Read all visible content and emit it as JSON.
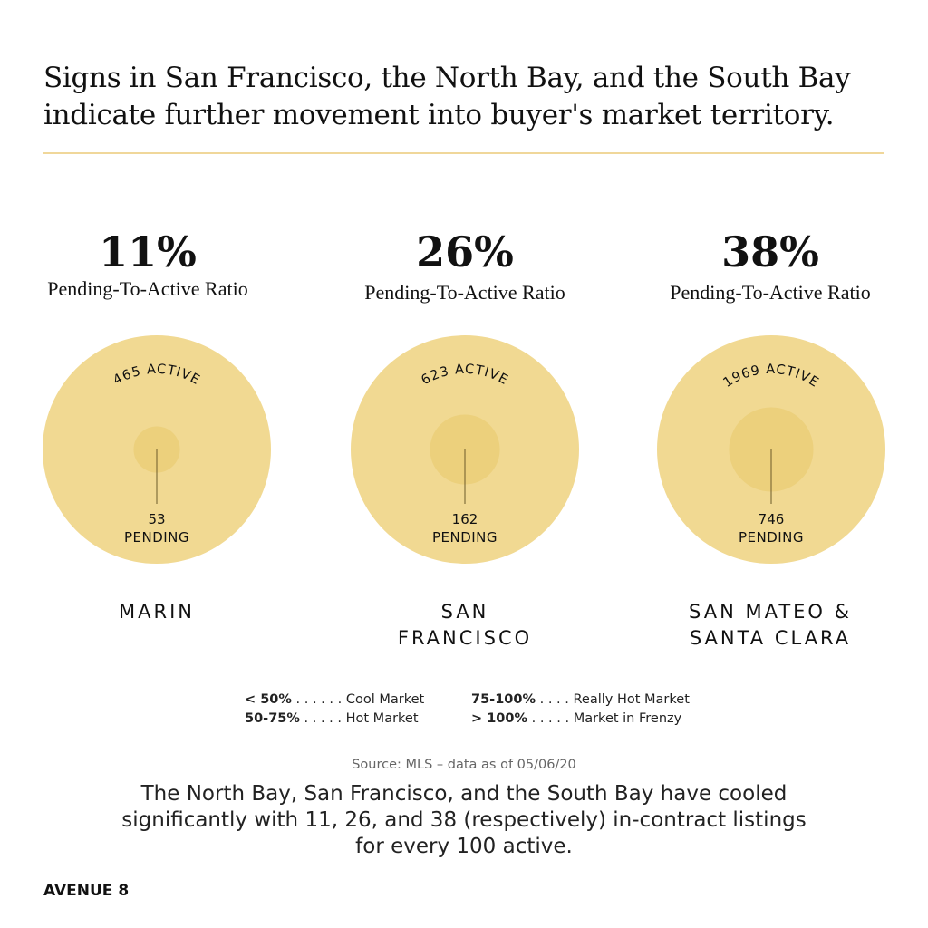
{
  "header": {
    "title_line1": "Signs in San Francisco, the North Bay, and the South Bay",
    "title_line2": "indicate further movement into buyer's market territory."
  },
  "colors": {
    "outer_circle": "#f1d992",
    "inner_circle": "#ecd07c",
    "rule": "#f0d79a",
    "pointer": "#6b5a2a"
  },
  "chart_data": {
    "type": "bubble",
    "categories": [
      "MARIN",
      "SAN FRANCISCO",
      "SAN MATEO & SANTA CLARA"
    ],
    "series": [
      {
        "name": "ACTIVE",
        "values": [
          465,
          623,
          1969
        ]
      },
      {
        "name": "PENDING",
        "values": [
          53,
          162,
          746
        ]
      }
    ],
    "ratio_label": "Pending-To-Active Ratio",
    "ratios": [
      "11%",
      "26%",
      "38%"
    ]
  },
  "regions": [
    {
      "pct": "11%",
      "ratio_label": "Pending-To-Active Ratio",
      "active_label": "465 ACTIVE",
      "pending_count": "53",
      "pending_label": "PENDING",
      "name_line1": "MARIN",
      "name_line2": ""
    },
    {
      "pct": "26%",
      "ratio_label": "Pending-To-Active Ratio",
      "active_label": "623 ACTIVE",
      "pending_count": "162",
      "pending_label": "PENDING",
      "name_line1": "SAN",
      "name_line2": "FRANCISCO"
    },
    {
      "pct": "38%",
      "ratio_label": "Pending-To-Active Ratio",
      "active_label": "1969 ACTIVE",
      "pending_count": "746",
      "pending_label": "PENDING",
      "name_line1": "SAN MATEO &",
      "name_line2": "SANTA CLARA"
    }
  ],
  "legend": [
    {
      "range": "< 50%",
      "dots": " . . . . . . ",
      "label": "Cool Market"
    },
    {
      "range": "50-75%",
      "dots": " . . . . . ",
      "label": "Hot Market"
    },
    {
      "range": "75-100%",
      "dots": " . . . . ",
      "label": "Really Hot Market"
    },
    {
      "range": "> 100%",
      "dots": " . . . . . ",
      "label": "Market in Frenzy"
    }
  ],
  "source": "Source: MLS – data as of 05/06/20",
  "summary": {
    "line1": "The North Bay, San Francisco, and the South Bay have cooled",
    "line2": "significantly with 11, 26, and 38 (respectively) in-contract listings",
    "line3": "for every 100 active."
  },
  "brand": "AVENUE 8"
}
